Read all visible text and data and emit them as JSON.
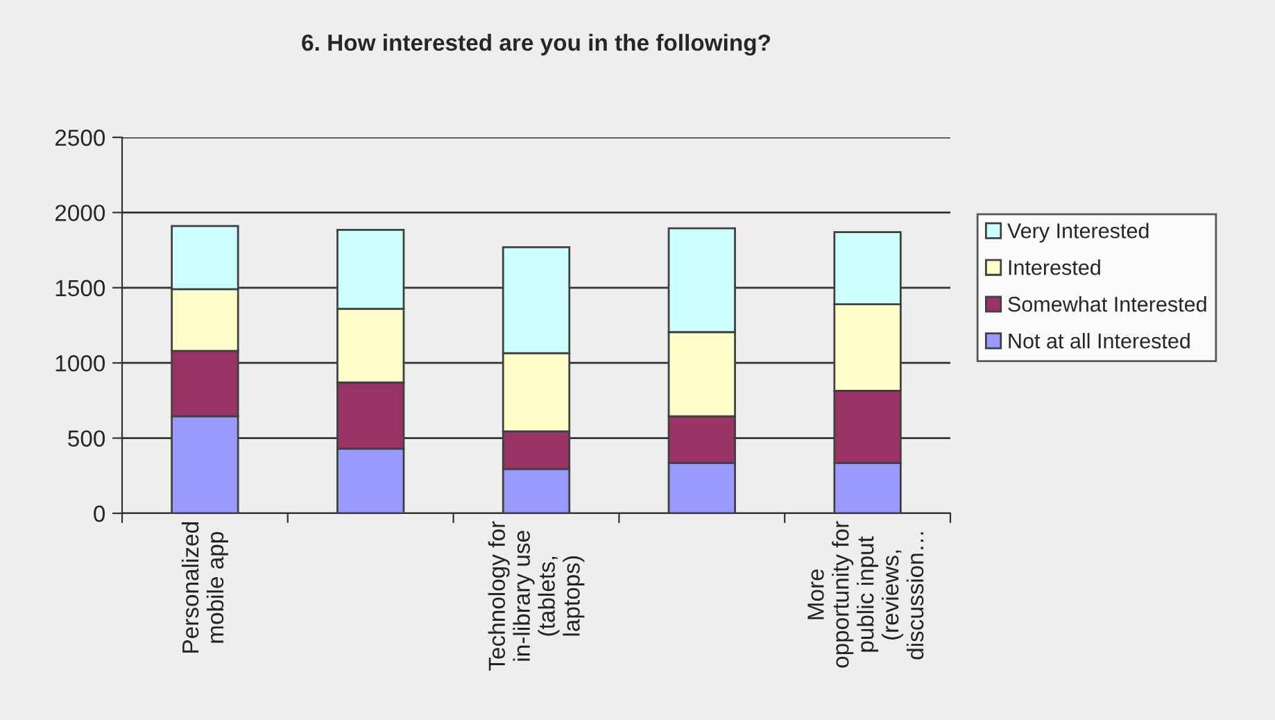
{
  "chart_data": {
    "type": "bar",
    "title": "6. How interested are you in the following?",
    "categories": [
      "Personalized\nmobile app",
      null,
      "Technology for\nin-library use\n(tablets,\nlaptops)",
      null,
      "More\nopportunity for\npublic input\n(reviews,\ndiscussion…"
    ],
    "series": [
      {
        "name": "Not at all Interested",
        "color": "#9999ff",
        "values": [
          645,
          430,
          295,
          335,
          335
        ]
      },
      {
        "name": "Somewhat Interested",
        "color": "#993366",
        "values": [
          435,
          440,
          250,
          310,
          480
        ]
      },
      {
        "name": "Interested",
        "color": "#ffffcc",
        "values": [
          410,
          490,
          520,
          560,
          575
        ]
      },
      {
        "name": "Very Interested",
        "color": "#ccffff",
        "values": [
          420,
          525,
          705,
          690,
          480
        ]
      }
    ],
    "stacked": true,
    "ylim": [
      0,
      2500
    ],
    "yticks": [
      0,
      500,
      1000,
      1500,
      2000,
      2500
    ],
    "grid": "y",
    "legend": "right"
  }
}
